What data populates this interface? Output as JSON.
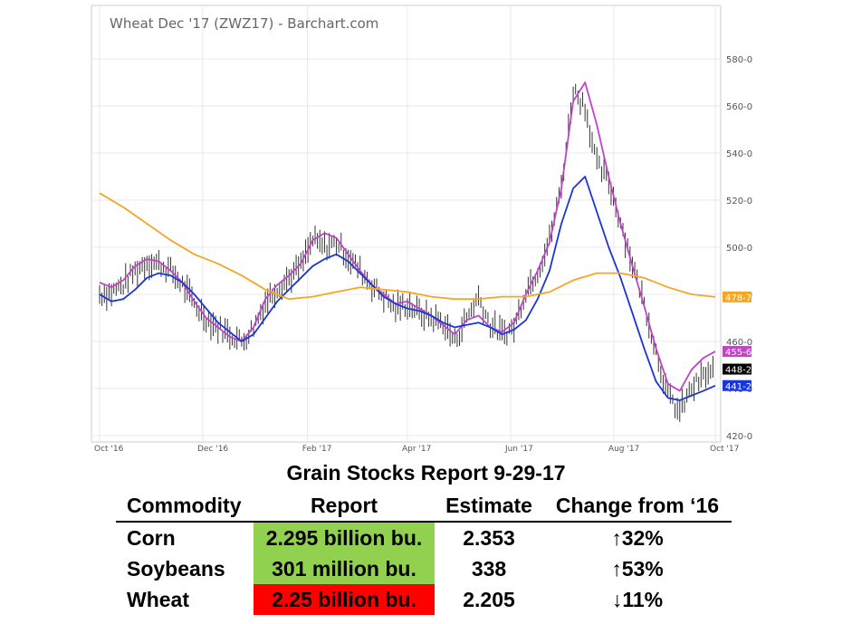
{
  "chart_data": {
    "type": "ohlc",
    "title": "Wheat Dec '17 (ZWZ17) - Barchart.com",
    "x_ticks": [
      "Oct '16",
      "Dec '16",
      "Feb '17",
      "Apr '17",
      "Jun '17",
      "Aug '17",
      "Oct '17"
    ],
    "y_ticks": [
      "420-0",
      "440-0",
      "460-0",
      "480-0",
      "500-0",
      "520-0",
      "540-0",
      "560-0",
      "580-0"
    ],
    "ylim": [
      420,
      588
    ],
    "grid": true,
    "price_tags": [
      {
        "label": "478-7",
        "value": 478.9,
        "color": "#f5a623"
      },
      {
        "label": "455-6",
        "value": 455.75,
        "color": "#c044c8"
      },
      {
        "label": "448-2",
        "value": 448.25,
        "color": "#000000"
      },
      {
        "label": "441-2",
        "value": 441.25,
        "color": "#1a35d8"
      }
    ],
    "series": [
      {
        "kind": "price_bars",
        "color": "#333333",
        "x": [
          "2016-09-30",
          "2016-10-07",
          "2016-10-14",
          "2016-10-21",
          "2016-10-28",
          "2016-11-04",
          "2016-11-11",
          "2016-11-18",
          "2016-11-25",
          "2016-12-02",
          "2016-12-09",
          "2016-12-16",
          "2016-12-23",
          "2016-12-30",
          "2017-01-06",
          "2017-01-13",
          "2017-01-20",
          "2017-01-27",
          "2017-02-03",
          "2017-02-10",
          "2017-02-17",
          "2017-02-24",
          "2017-03-03",
          "2017-03-10",
          "2017-03-17",
          "2017-03-24",
          "2017-03-31",
          "2017-04-07",
          "2017-04-14",
          "2017-04-21",
          "2017-04-28",
          "2017-05-05",
          "2017-05-12",
          "2017-05-19",
          "2017-05-26",
          "2017-06-02",
          "2017-06-09",
          "2017-06-16",
          "2017-06-23",
          "2017-06-30",
          "2017-07-07",
          "2017-07-14",
          "2017-07-21",
          "2017-07-28",
          "2017-08-04",
          "2017-08-11",
          "2017-08-18",
          "2017-08-25",
          "2017-09-01",
          "2017-09-08",
          "2017-09-15",
          "2017-09-22",
          "2017-09-29"
        ],
        "values": [
          480,
          481,
          484,
          490,
          494,
          493,
          490,
          484,
          476,
          470,
          466,
          463,
          460,
          466,
          477,
          483,
          487,
          492,
          503,
          500,
          502,
          496,
          490,
          484,
          479,
          474,
          476,
          472,
          470,
          468,
          460,
          470,
          479,
          467,
          463,
          466,
          482,
          490,
          503,
          526,
          567,
          560,
          535,
          528,
          511,
          493,
          476,
          456,
          437,
          430,
          440,
          445,
          448
        ]
      },
      {
        "kind": "moving_average",
        "color": "#c044c8",
        "x": [
          "2016-09-30",
          "2016-10-07",
          "2016-10-14",
          "2016-10-21",
          "2016-10-28",
          "2016-11-04",
          "2016-11-11",
          "2016-11-18",
          "2016-11-25",
          "2016-12-02",
          "2016-12-09",
          "2016-12-16",
          "2016-12-23",
          "2016-12-30",
          "2017-01-06",
          "2017-01-13",
          "2017-01-20",
          "2017-01-27",
          "2017-02-03",
          "2017-02-10",
          "2017-02-17",
          "2017-02-24",
          "2017-03-03",
          "2017-03-10",
          "2017-03-17",
          "2017-03-24",
          "2017-03-31",
          "2017-04-07",
          "2017-04-14",
          "2017-04-21",
          "2017-04-28",
          "2017-05-05",
          "2017-05-12",
          "2017-05-19",
          "2017-05-26",
          "2017-06-02",
          "2017-06-09",
          "2017-06-16",
          "2017-06-23",
          "2017-06-30",
          "2017-07-07",
          "2017-07-14",
          "2017-07-21",
          "2017-07-28",
          "2017-08-04",
          "2017-08-11",
          "2017-08-18",
          "2017-08-25",
          "2017-09-01",
          "2017-09-08",
          "2017-09-15",
          "2017-09-22",
          "2017-09-29"
        ],
        "values": [
          485,
          483,
          486,
          492,
          495,
          494,
          490,
          485,
          477,
          470,
          466,
          462,
          460,
          466,
          478,
          484,
          488,
          493,
          503,
          506,
          504,
          497,
          490,
          484,
          480,
          476,
          477,
          474,
          471,
          467,
          463,
          469,
          471,
          466,
          464,
          468,
          480,
          490,
          502,
          525,
          562,
          570,
          552,
          530,
          510,
          492,
          475,
          457,
          442,
          439,
          448,
          453,
          455.75
        ]
      },
      {
        "kind": "moving_average",
        "color": "#1a35d8",
        "x": [
          "2016-09-30",
          "2016-10-07",
          "2016-10-14",
          "2016-10-21",
          "2016-10-28",
          "2016-11-04",
          "2016-11-11",
          "2016-11-18",
          "2016-11-25",
          "2016-12-02",
          "2016-12-09",
          "2016-12-16",
          "2016-12-23",
          "2016-12-30",
          "2017-01-06",
          "2017-01-13",
          "2017-01-20",
          "2017-01-27",
          "2017-02-03",
          "2017-02-10",
          "2017-02-17",
          "2017-02-24",
          "2017-03-03",
          "2017-03-10",
          "2017-03-17",
          "2017-03-24",
          "2017-03-31",
          "2017-04-07",
          "2017-04-14",
          "2017-04-21",
          "2017-04-28",
          "2017-05-05",
          "2017-05-12",
          "2017-05-19",
          "2017-05-26",
          "2017-06-02",
          "2017-06-09",
          "2017-06-16",
          "2017-06-23",
          "2017-06-30",
          "2017-07-07",
          "2017-07-14",
          "2017-07-21",
          "2017-07-28",
          "2017-08-04",
          "2017-08-11",
          "2017-08-18",
          "2017-08-25",
          "2017-09-01",
          "2017-09-08",
          "2017-09-15",
          "2017-09-22",
          "2017-09-29"
        ],
        "values": [
          480,
          477,
          478,
          482,
          487,
          489,
          488,
          485,
          480,
          474,
          468,
          464,
          460,
          463,
          470,
          477,
          482,
          487,
          492,
          495,
          497,
          494,
          489,
          484,
          479,
          476,
          474,
          473,
          471,
          468,
          466,
          467,
          468,
          466,
          463,
          465,
          469,
          478,
          490,
          510,
          525,
          530,
          515,
          500,
          487,
          472,
          457,
          443,
          436,
          435,
          437,
          439,
          441.25
        ]
      },
      {
        "kind": "moving_average",
        "color": "#f5a623",
        "x": [
          "2016-09-30",
          "2016-10-14",
          "2016-10-28",
          "2016-11-11",
          "2016-11-25",
          "2016-12-09",
          "2016-12-23",
          "2017-01-06",
          "2017-01-20",
          "2017-02-03",
          "2017-02-17",
          "2017-03-03",
          "2017-03-17",
          "2017-03-31",
          "2017-04-14",
          "2017-04-28",
          "2017-05-12",
          "2017-05-26",
          "2017-06-09",
          "2017-06-23",
          "2017-07-07",
          "2017-07-21",
          "2017-08-04",
          "2017-08-18",
          "2017-09-01",
          "2017-09-15",
          "2017-09-29"
        ],
        "values": [
          523,
          517,
          510,
          503,
          497,
          493,
          488,
          482,
          478,
          479,
          481,
          483,
          482,
          481,
          479,
          478,
          478,
          479,
          479,
          481,
          486,
          489,
          489,
          487,
          483,
          480,
          478.9
        ]
      }
    ]
  },
  "report": {
    "title": "Grain Stocks Report 9-29-17",
    "headers": {
      "commodity": "Commodity",
      "report": "Report",
      "estimate": "Estimate",
      "change": "Change from ‘16"
    },
    "rows": [
      {
        "commodity": "Corn",
        "report": "2.295 billion bu.",
        "estimate": "2.353",
        "change": "↑32%",
        "highlight": "#92d050"
      },
      {
        "commodity": "Soybeans",
        "report": "301 million bu.",
        "estimate": "338",
        "change": "↑53%",
        "highlight": "#92d050"
      },
      {
        "commodity": "Wheat",
        "report": "2.25 billion bu.",
        "estimate": "2.205",
        "change": "↓11%",
        "highlight": "#ff0000"
      }
    ]
  }
}
